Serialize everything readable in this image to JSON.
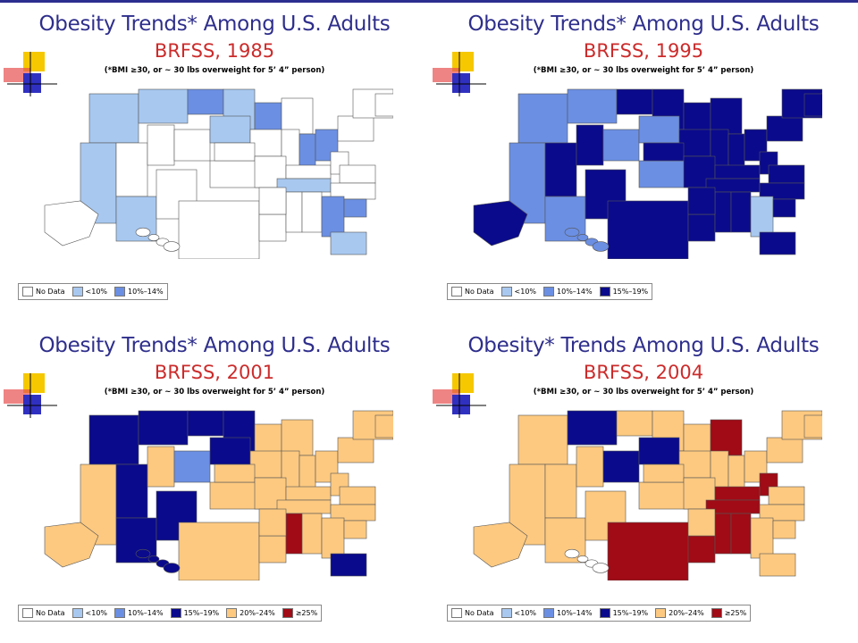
{
  "colors": {
    "nodata": "#ffffff",
    "lt10": "#a8c8f0",
    "p10_14": "#6b8fe3",
    "p15_19": "#0a0a8c",
    "p20_24": "#fdc980",
    "ge25": "#a00b15",
    "title_blue": "#2e2e8c",
    "title_red": "#cc2b2b"
  },
  "note": "(*BMI ≥30, or ~ 30 lbs overweight for 5’ 4” person)",
  "panels": [
    {
      "title": "Obesity Trends* Among U.S. Adults",
      "subtitle": "BRFSS, 1985",
      "legend": [
        {
          "key": "nodata",
          "label": "No Data"
        },
        {
          "key": "lt10",
          "label": "<10%"
        },
        {
          "key": "p10_14",
          "label": "10%–14%"
        }
      ],
      "map": {
        "base": "nodata",
        "cells": {
          "nw": "lt10",
          "ca": "lt10",
          "mt": "lt10",
          "nd": "p10_14",
          "mn": "lt10",
          "wi": "p10_14",
          "mi": "nodata",
          "oh": "p10_14",
          "ne": "lt10",
          "az": "lt10",
          "tn": "lt10",
          "ga": "p10_14",
          "fl": "lt10",
          "sc": "p10_14",
          "in": "p10_14"
        },
        "alaska": "nodata",
        "hawaii": "nodata"
      }
    },
    {
      "title": "Obesity Trends* Among U.S. Adults",
      "subtitle": "BRFSS, 1995",
      "legend": [
        {
          "key": "nodata",
          "label": "No Data"
        },
        {
          "key": "lt10",
          "label": "<10%"
        },
        {
          "key": "p10_14",
          "label": "10%–14%"
        },
        {
          "key": "p15_19",
          "label": "15%–19%"
        }
      ],
      "map": {
        "base": "p15_19",
        "cells": {
          "nw": "p10_14",
          "ca": "p10_14",
          "mt": "p10_14",
          "nd": "p15_19",
          "co": "p10_14",
          "az": "p10_14",
          "ne": "p10_14",
          "ok": "p10_14",
          "ga": "lt10",
          "mn": "p15_19"
        },
        "alaska": "p15_19",
        "hawaii": "p10_14"
      }
    },
    {
      "title": "Obesity Trends* Among U.S. Adults",
      "subtitle": "BRFSS, 2001",
      "legend": [
        {
          "key": "nodata",
          "label": "No Data"
        },
        {
          "key": "lt10",
          "label": "<10%"
        },
        {
          "key": "p10_14",
          "label": "10%–14%"
        },
        {
          "key": "p15_19",
          "label": "15%–19%"
        },
        {
          "key": "p20_24",
          "label": "20%–24%"
        },
        {
          "key": "ge25",
          "label": "≥25%"
        }
      ],
      "map": {
        "base": "p20_24",
        "cells": {
          "nw": "p15_19",
          "mt": "p15_19",
          "nd": "p15_19",
          "mn": "p15_19",
          "ca": "p20_24",
          "nv": "p15_19",
          "az": "p15_19",
          "co": "p10_14",
          "ne": "p15_19",
          "ms": "ge25",
          "fl": "p15_19",
          "nm": "p15_19"
        },
        "alaska": "p20_24",
        "hawaii": "p15_19"
      }
    },
    {
      "title": "Obesity* Trends Among U.S. Adults",
      "subtitle": "BRFSS, 2004",
      "legend": [
        {
          "key": "nodata",
          "label": "No Data"
        },
        {
          "key": "lt10",
          "label": "<10%"
        },
        {
          "key": "p10_14",
          "label": "10%–14%"
        },
        {
          "key": "p15_19",
          "label": "15%–19%"
        },
        {
          "key": "p20_24",
          "label": "20%–24%"
        },
        {
          "key": "ge25",
          "label": "≥25%"
        }
      ],
      "map": {
        "base": "p20_24",
        "cells": {
          "mt": "p15_19",
          "co": "p15_19",
          "mi": "ge25",
          "tx": "ge25",
          "la": "ge25",
          "ms": "ge25",
          "al": "ge25",
          "tn": "ge25",
          "ky": "ge25",
          "wv": "ge25",
          "ne": "p15_19"
        },
        "alaska": "p20_24",
        "hawaii": "nodata"
      }
    }
  ]
}
